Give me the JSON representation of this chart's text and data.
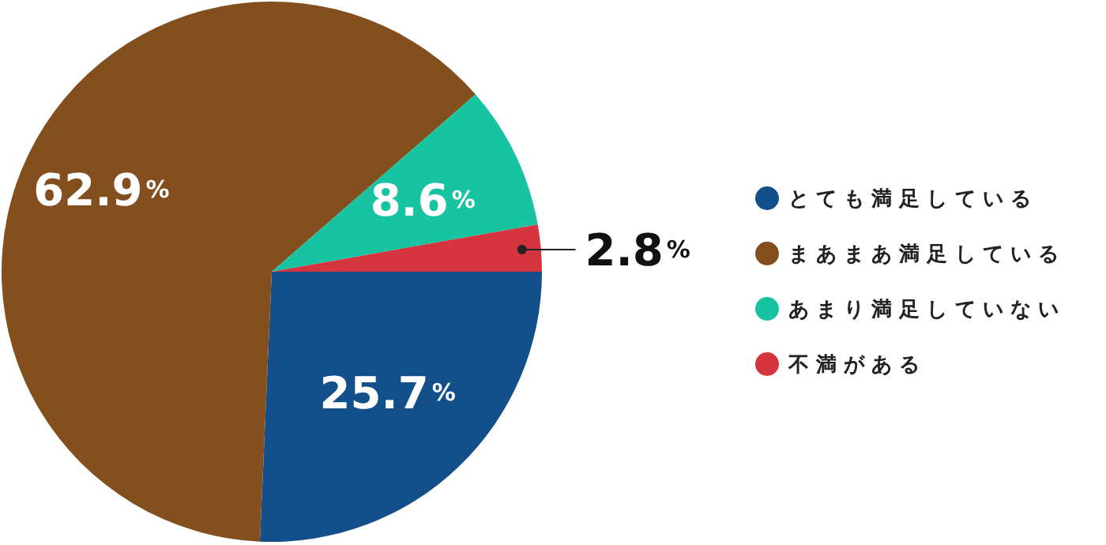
{
  "chart_data": {
    "type": "pie",
    "categories": [
      "とても満足している",
      "まあまあ満足している",
      "あまり満足していない",
      "不満がある"
    ],
    "values": [
      25.7,
      62.9,
      8.6,
      2.8
    ],
    "colors": [
      "#134f8a",
      "#844f1e",
      "#17c3a0",
      "#d4343e"
    ],
    "value_labels": [
      "25.7%",
      "62.9%",
      "8.6%",
      "2.8%"
    ],
    "legend": "right"
  }
}
